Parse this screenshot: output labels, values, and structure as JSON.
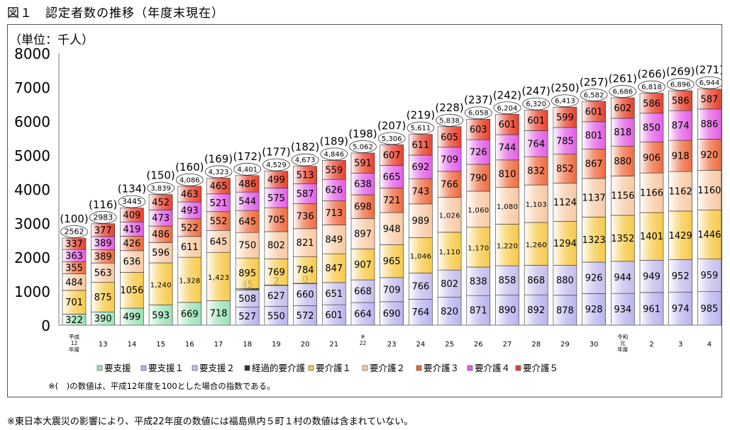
{
  "figure": {
    "title": "図１　認定者数の推移（年度末現在）",
    "footnote": "※東日本大震災の影響により、平成22年度の数値には福島県内５町１村の数値は含まれていない。"
  },
  "chart_data": {
    "type": "bar",
    "stacked": true,
    "unit_label": "（単位：千人）",
    "ylim": [
      0,
      8000
    ],
    "yticks": [
      0,
      1000,
      2000,
      3000,
      4000,
      5000,
      6000,
      7000,
      8000
    ],
    "grid": false,
    "legend_position": "bottom",
    "note": "※(　)の数値は、平成12年度を100とした場合の指数である。",
    "categories": [
      [
        "平成",
        "12",
        "年度"
      ],
      [
        "13"
      ],
      [
        "14"
      ],
      [
        "15"
      ],
      [
        "16"
      ],
      [
        "17"
      ],
      [
        "18"
      ],
      [
        "19"
      ],
      [
        "20"
      ],
      [
        "21"
      ],
      [
        "※",
        "22"
      ],
      [
        "23"
      ],
      [
        "24"
      ],
      [
        "25"
      ],
      [
        "26"
      ],
      [
        "27"
      ],
      [
        "28"
      ],
      [
        "29"
      ],
      [
        "30"
      ],
      [
        "令和",
        "元",
        "年度"
      ],
      [
        "2"
      ],
      [
        "3"
      ],
      [
        "4"
      ]
    ],
    "totals": [
      "2562",
      "2983",
      "3445",
      "3,839",
      "4,086",
      "4,323",
      "4,401",
      "4,529",
      "4,673",
      "4,846",
      "5,062",
      "5,306",
      "5,611",
      "5,838",
      "6,058",
      "6,204",
      "6,320",
      "6,413",
      "6,582",
      "6,686",
      "6,818",
      "6,896",
      "6,944"
    ],
    "index": [
      100,
      116,
      134,
      150,
      160,
      169,
      172,
      177,
      182,
      189,
      198,
      207,
      219,
      228,
      237,
      242,
      247,
      250,
      257,
      261,
      266,
      269,
      271
    ],
    "series": [
      {
        "name": "要支援",
        "color": "#9ae3b4",
        "values": [
          322,
          390,
          499,
          593,
          669,
          718,
          null,
          null,
          null,
          null,
          null,
          null,
          null,
          null,
          null,
          null,
          null,
          null,
          null,
          null,
          null,
          null,
          null
        ]
      },
      {
        "name": "要支援１",
        "color": "#b9b4ee",
        "values": [
          null,
          null,
          null,
          null,
          null,
          null,
          527,
          550,
          572,
          601,
          664,
          690,
          764,
          820,
          871,
          890,
          892,
          878,
          928,
          934,
          961,
          974,
          985
        ]
      },
      {
        "name": "要支援２",
        "color": "#c5bdeb",
        "values": [
          null,
          null,
          null,
          null,
          null,
          null,
          508,
          627,
          660,
          651,
          668,
          709,
          766,
          802,
          838,
          858,
          868,
          880,
          926,
          944,
          949,
          952,
          959
        ]
      },
      {
        "name": "経過的要介護",
        "color": "#333333",
        "values": [
          null,
          null,
          null,
          null,
          null,
          null,
          45,
          2,
          0,
          null,
          null,
          null,
          null,
          null,
          null,
          null,
          null,
          null,
          null,
          null,
          null,
          null,
          null
        ]
      },
      {
        "name": "要介護１",
        "color": "#f7c94a",
        "values": [
          701,
          875,
          1056,
          1240,
          1328,
          1423,
          895,
          769,
          784,
          847,
          907,
          965,
          1046,
          1110,
          1170,
          1220,
          1260,
          1294,
          1323,
          1352,
          1401,
          1429,
          1446
        ]
      },
      {
        "name": "要介護２",
        "color": "#f7c9a3",
        "values": [
          484,
          563,
          636,
          596,
          611,
          645,
          750,
          802,
          821,
          849,
          897,
          948,
          989,
          1026,
          1060,
          1080,
          1103,
          1124,
          1137,
          1156,
          1166,
          1162,
          1160
        ]
      },
      {
        "name": "要介護３",
        "color": "#ef6a3e",
        "values": [
          355,
          389,
          426,
          486,
          522,
          552,
          645,
          705,
          736,
          713,
          698,
          721,
          743,
          766,
          790,
          810,
          832,
          852,
          867,
          880,
          906,
          918,
          920
        ]
      },
      {
        "name": "要介護４",
        "color": "#e35ee6",
        "values": [
          363,
          389,
          419,
          473,
          493,
          521,
          544,
          575,
          587,
          626,
          638,
          665,
          692,
          709,
          726,
          744,
          764,
          785,
          801,
          818,
          850,
          874,
          886
        ]
      },
      {
        "name": "要介護５",
        "color": "#e8402b",
        "values": [
          337,
          377,
          409,
          452,
          463,
          465,
          486,
          499,
          513,
          559,
          591,
          607,
          611,
          605,
          603,
          601,
          601,
          599,
          601,
          602,
          586,
          586,
          587
        ]
      }
    ],
    "labels": {
      "要支援": [
        "322",
        "390",
        "499",
        "593",
        "669",
        "718",
        null,
        null,
        null,
        null,
        null,
        null,
        null,
        null,
        null,
        null,
        null,
        null,
        null,
        null,
        null,
        null,
        null
      ],
      "要支援１": [
        null,
        null,
        null,
        null,
        null,
        null,
        "527",
        "550",
        "572",
        "601",
        "664",
        "690",
        "764",
        "820",
        "871",
        "890",
        "892",
        "878",
        "928",
        "934",
        "961",
        "974",
        "985"
      ],
      "要支援２": [
        null,
        null,
        null,
        null,
        null,
        null,
        "508",
        "627",
        "660",
        "651",
        "668",
        "709",
        "766",
        "802",
        "838",
        "858",
        "868",
        "880",
        "926",
        "944",
        "949",
        "952",
        "959"
      ],
      "経過的要介護": [
        null,
        null,
        null,
        null,
        null,
        null,
        "45",
        "2",
        "0",
        null,
        null,
        null,
        null,
        null,
        null,
        null,
        null,
        null,
        null,
        null,
        null,
        null,
        null
      ],
      "要介護１": [
        "701",
        "875",
        "1056",
        "1,240",
        "1,328",
        "1,423",
        "895",
        "769",
        "784",
        "847",
        "907",
        "965",
        "1,046",
        "1,110",
        "1,170",
        "1,220",
        "1,260",
        "1294",
        "1323",
        "1352",
        "1401",
        "1429",
        "1446"
      ],
      "要介護２": [
        "484",
        "563",
        "636",
        "596",
        "611",
        "645",
        "750",
        "802",
        "821",
        "849",
        "897",
        "948",
        "989",
        "1,026",
        "1,060",
        "1,080",
        "1,103",
        "1124",
        "1137",
        "1156",
        "1166",
        "1162",
        "1160"
      ],
      "要介護３": [
        "355",
        "389",
        "426",
        "486",
        "522",
        "552",
        "645",
        "705",
        "736",
        "713",
        "698",
        "721",
        "743",
        "766",
        "790",
        "810",
        "832",
        "852",
        "867",
        "880",
        "906",
        "918",
        "920"
      ],
      "要介護４": [
        "363",
        "389",
        "419",
        "473",
        "493",
        "521",
        "544",
        "575",
        "587",
        "626",
        "638",
        "665",
        "692",
        "709",
        "726",
        "744",
        "764",
        "785",
        "801",
        "818",
        "850",
        "874",
        "886"
      ],
      "要介護５": [
        "337",
        "377",
        "409",
        "452",
        "463",
        "465",
        "486",
        "499",
        "513",
        "559",
        "591",
        "607",
        "611",
        "605",
        "603",
        "601",
        "601",
        "599",
        "601",
        "602",
        "586",
        "586",
        "587"
      ]
    }
  }
}
